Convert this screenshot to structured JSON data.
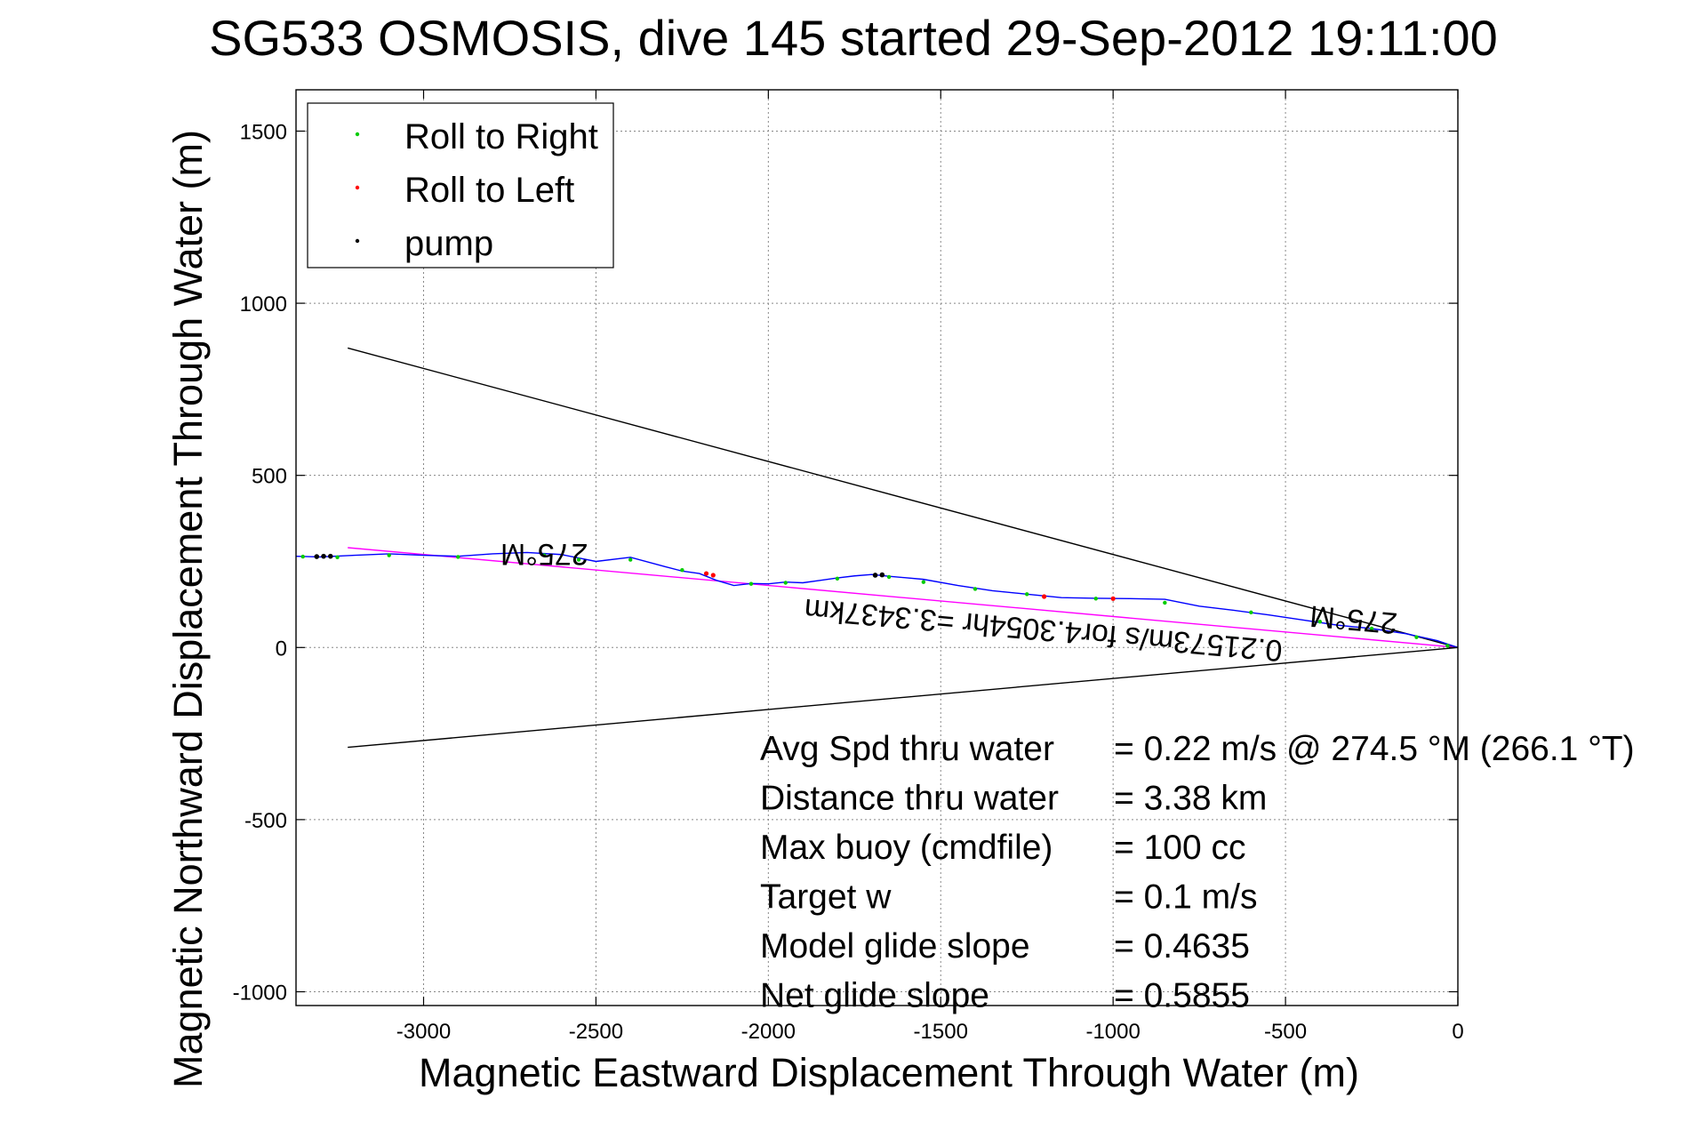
{
  "chart_data": {
    "type": "line",
    "title": "SG533 OSMOSIS, dive 145 started 29-Sep-2012 19:11:00",
    "xlabel": "Magnetic Eastward Displacement Through Water (m)",
    "ylabel": "Magnetic Northward Displacement Through Water (m)",
    "xlim": [
      -3370,
      0
    ],
    "ylim": [
      -1040,
      1620
    ],
    "xticks": [
      -3000,
      -2500,
      -2000,
      -1500,
      -1000,
      -500,
      0
    ],
    "yticks": [
      -1000,
      -500,
      0,
      500,
      1000,
      1500
    ],
    "grid": true,
    "legend": {
      "placement": "top-left",
      "entries": [
        {
          "label": "Roll to Right",
          "color": "#00cc00"
        },
        {
          "label": "Roll to Left",
          "color": "#ff0000"
        },
        {
          "label": "pump",
          "color": "#000000"
        }
      ]
    },
    "track": {
      "color": "#0000ff",
      "x": [
        0,
        -60,
        -150,
        -250,
        -350,
        -450,
        -550,
        -650,
        -750,
        -850,
        -950,
        -1050,
        -1150,
        -1250,
        -1350,
        -1450,
        -1550,
        -1650,
        -1700,
        -1750,
        -1800,
        -1850,
        -1900,
        -1950,
        -2000,
        -2050,
        -2100,
        -2150,
        -2200,
        -2250,
        -2300,
        -2400,
        -2500,
        -2600,
        -2700,
        -2800,
        -2900,
        -3000,
        -3100,
        -3200,
        -3300,
        -3370
      ],
      "y": [
        0,
        20,
        40,
        55,
        65,
        80,
        95,
        108,
        120,
        140,
        142,
        143,
        145,
        155,
        165,
        180,
        198,
        207,
        212,
        208,
        202,
        195,
        188,
        190,
        185,
        186,
        180,
        195,
        215,
        222,
        235,
        262,
        250,
        270,
        276,
        272,
        265,
        268,
        272,
        268,
        263,
        265
      ]
    },
    "roll_right_points": {
      "x": [
        -30,
        -120,
        -250,
        -400,
        -600,
        -850,
        -1050,
        -1250,
        -1400,
        -1550,
        -1650,
        -1800,
        -1950,
        -2050,
        -2250,
        -2400,
        -2550,
        -2650,
        -2900,
        -3100,
        -3250,
        -3350
      ],
      "y": [
        5,
        30,
        55,
        75,
        102,
        130,
        142,
        155,
        170,
        190,
        205,
        200,
        188,
        185,
        225,
        255,
        255,
        268,
        263,
        268,
        262,
        264
      ]
    },
    "roll_left_points": {
      "x": [
        -1200,
        -1000,
        -2160,
        -2180
      ],
      "y": [
        148,
        142,
        210,
        215
      ]
    },
    "pump_points": {
      "x": [
        -1690,
        -1670,
        -3270,
        -3290,
        -3310
      ],
      "y": [
        210,
        211,
        265,
        265,
        264
      ]
    },
    "fit_line": {
      "color": "#ff00ff",
      "x": [
        0,
        -3220
      ],
      "y": [
        0,
        290
      ]
    },
    "envelope_upper": {
      "color": "#000000",
      "x": [
        0,
        -3220
      ],
      "y": [
        0,
        870
      ]
    },
    "envelope_lower": {
      "color": "#000000",
      "x": [
        0,
        -3220
      ],
      "y": [
        0,
        -290
      ]
    },
    "annotations": [
      {
        "text": "275°M",
        "x": -2650,
        "y": 300,
        "rotation": 180
      },
      {
        "text": "275°M",
        "x": -300,
        "y": 110,
        "rotation": 185
      },
      {
        "text": "0.21573m/s for4.3054hr =3.3437km",
        "x": -1200,
        "y": 80,
        "rotation": 185
      }
    ],
    "stats": [
      {
        "label": "Avg Spd thru water",
        "value": "=  0.22 m/s @ 274.5 °M (266.1 °T)"
      },
      {
        "label": "Distance thru water",
        "value": "=  3.38 km"
      },
      {
        "label": "Max buoy (cmdfile)",
        "value": "= 100 cc"
      },
      {
        "label": "Target w",
        "value": "= 0.1 m/s"
      },
      {
        "label": "Model glide slope",
        "value": "= 0.4635"
      },
      {
        "label": "Net glide slope",
        "value": "= 0.5855"
      }
    ]
  }
}
